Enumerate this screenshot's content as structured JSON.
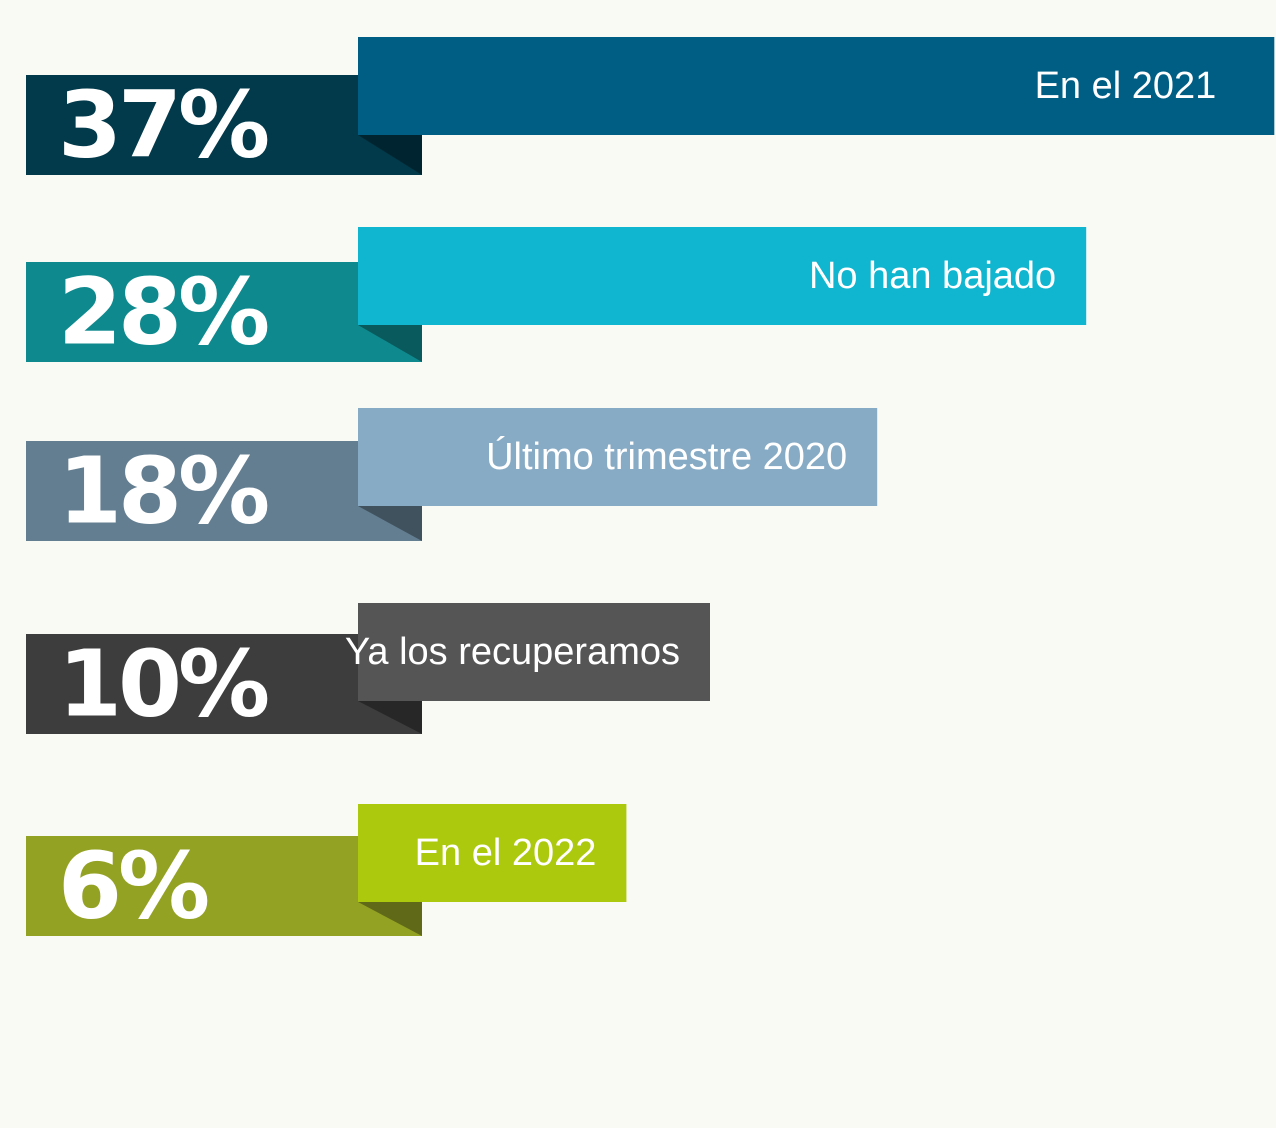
{
  "chart_data": {
    "type": "bar",
    "categories": [
      "En el 2021",
      "No han bajado",
      "Último trimestre 2020",
      "Ya los recuperamos",
      "En el 2022"
    ],
    "values": [
      37,
      28,
      18,
      10,
      6
    ],
    "value_labels": [
      "37%",
      "28%",
      "18%",
      "10%",
      "6%"
    ],
    "colors": [
      "#005e85",
      "#10b6d0",
      "#88abc5",
      "#555555",
      "#adc90e"
    ],
    "tab_colors": [
      "#023a4b",
      "#0e8a8e",
      "#637e91",
      "#3d3d3d",
      "#94a224"
    ]
  }
}
